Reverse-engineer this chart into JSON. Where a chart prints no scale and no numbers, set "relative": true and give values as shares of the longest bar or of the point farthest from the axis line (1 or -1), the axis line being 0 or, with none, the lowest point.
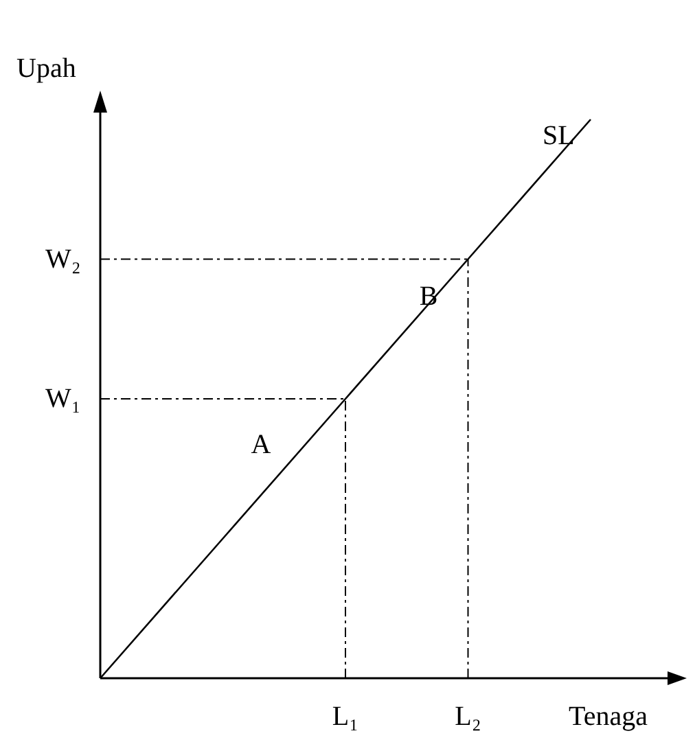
{
  "chart_data": {
    "type": "line",
    "relative": true,
    "xlabel": "Tenaga",
    "ylabel": "Upah",
    "categories": [
      null,
      null,
      "L₁",
      "L₂",
      null
    ],
    "series": [
      {
        "name": "SL",
        "color": "#000000",
        "values": [
          0,
          0.25,
          0.5,
          0.75,
          1
        ]
      }
    ],
    "ref_lines": [
      {
        "axis": "y",
        "value": 0.5,
        "label": "W₁",
        "line_style": "dashed",
        "color": "#000000"
      },
      {
        "axis": "y",
        "value": 0.75,
        "label": "W₂",
        "line_style": "dashed",
        "color": "#000000"
      },
      {
        "axis": "x",
        "value": "L₁",
        "line_style": "dashed",
        "color": "#000000"
      },
      {
        "axis": "x",
        "value": "L₂",
        "line_style": "dashed",
        "color": "#000000"
      }
    ],
    "annotations": [
      "A",
      "B"
    ]
  }
}
